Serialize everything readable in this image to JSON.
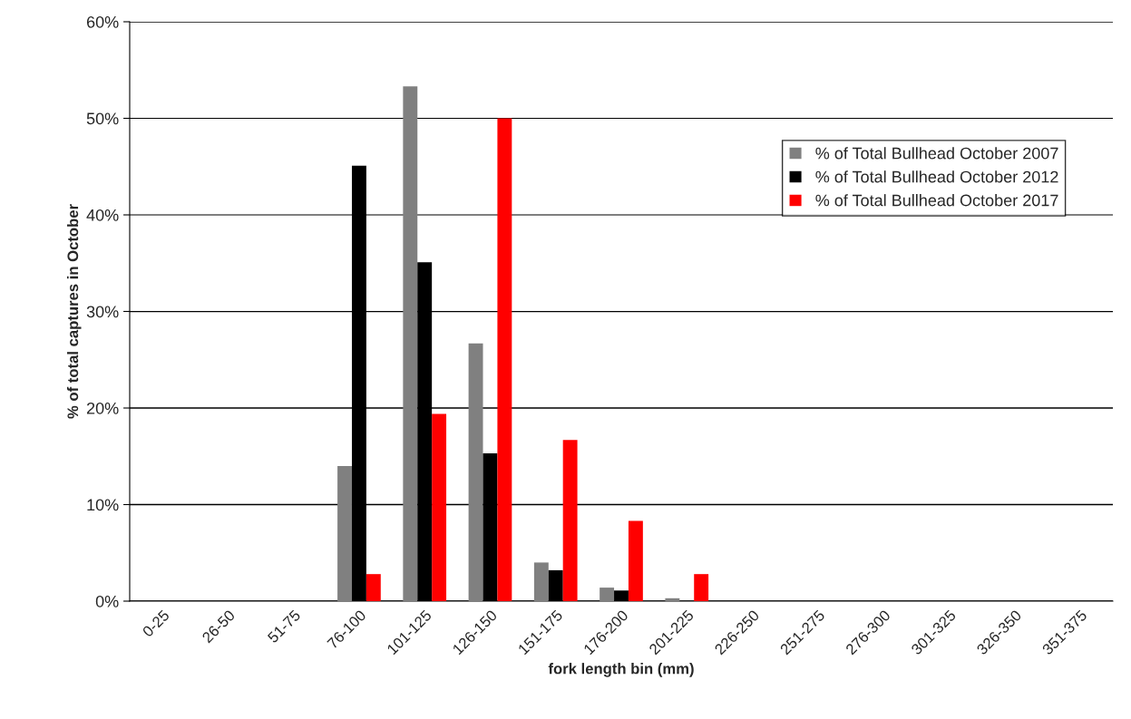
{
  "chart_data": {
    "type": "bar",
    "xlabel": "fork length bin (mm)",
    "ylabel": "% of total captures in October",
    "categories": [
      "0-25",
      "26-50",
      "51-75",
      "76-100",
      "101-125",
      "126-150",
      "151-175",
      "176-200",
      "201-225",
      "226-250",
      "251-275",
      "276-300",
      "301-325",
      "326-350",
      "351-375"
    ],
    "series": [
      {
        "name": "% of Total Bullhead October 2007",
        "color": "#808080",
        "values": [
          0,
          0,
          0,
          14.0,
          53.3,
          26.7,
          4.0,
          1.4,
          0.3,
          0,
          0,
          0,
          0,
          0,
          0
        ]
      },
      {
        "name": "% of Total Bullhead October 2012",
        "color": "#000000",
        "values": [
          0,
          0,
          0,
          45.1,
          35.1,
          15.3,
          3.2,
          1.1,
          0,
          0,
          0,
          0,
          0,
          0,
          0
        ]
      },
      {
        "name": "% of Total Bullhead October 2017",
        "color": "#ff0000",
        "values": [
          0,
          0,
          0,
          2.8,
          19.4,
          50.0,
          16.7,
          8.3,
          2.8,
          0,
          0,
          0,
          0,
          0,
          0
        ]
      }
    ],
    "ylim": [
      0,
      60
    ],
    "yticks": [
      {
        "value": 0,
        "label": "0%"
      },
      {
        "value": 10,
        "label": "10%"
      },
      {
        "value": 20,
        "label": "20%"
      },
      {
        "value": 30,
        "label": "30%"
      },
      {
        "value": 40,
        "label": "40%"
      },
      {
        "value": 50,
        "label": "50%"
      },
      {
        "value": 60,
        "label": "60%"
      }
    ],
    "grid": "y",
    "legend": "right"
  }
}
